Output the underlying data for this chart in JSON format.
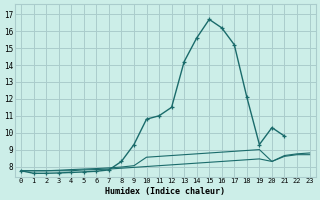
{
  "xlabel": "Humidex (Indice chaleur)",
  "background_color": "#cceee8",
  "grid_color": "#aacccc",
  "line_color": "#1a6b6b",
  "xlim": [
    -0.5,
    23.5
  ],
  "ylim": [
    7.4,
    17.6
  ],
  "xticks": [
    0,
    1,
    2,
    3,
    4,
    5,
    6,
    7,
    8,
    9,
    10,
    11,
    12,
    13,
    14,
    15,
    16,
    17,
    18,
    19,
    20,
    21,
    22,
    23
  ],
  "yticks": [
    8,
    9,
    10,
    11,
    12,
    13,
    14,
    15,
    16,
    17
  ],
  "series": [
    {
      "x": [
        0,
        1,
        2,
        3,
        4,
        5,
        6,
        7,
        8,
        9,
        10,
        11,
        12,
        13,
        14,
        15,
        16,
        17,
        18,
        19,
        20,
        21,
        22,
        23
      ],
      "y": [
        7.75,
        7.75,
        7.75,
        7.75,
        7.75,
        7.8,
        7.82,
        7.85,
        7.9,
        7.95,
        8.0,
        8.05,
        8.1,
        8.15,
        8.2,
        8.25,
        8.3,
        8.35,
        8.4,
        8.45,
        8.3,
        8.6,
        8.7,
        8.7
      ],
      "markers": false
    },
    {
      "x": [
        0,
        1,
        2,
        3,
        4,
        5,
        6,
        7,
        8,
        9,
        10,
        11,
        12,
        13,
        14,
        15,
        16,
        17,
        18,
        19,
        20,
        21,
        22,
        23
      ],
      "y": [
        7.75,
        7.75,
        7.75,
        7.78,
        7.82,
        7.85,
        7.88,
        7.92,
        7.97,
        8.05,
        8.55,
        8.6,
        8.65,
        8.7,
        8.75,
        8.8,
        8.85,
        8.9,
        8.95,
        9.0,
        8.3,
        8.65,
        8.75,
        8.8
      ],
      "markers": false
    },
    {
      "x": [
        0,
        1,
        2,
        3,
        4,
        5,
        6,
        7,
        8,
        9,
        10,
        11,
        12,
        13,
        14,
        15,
        16,
        17,
        18,
        19,
        20,
        21
      ],
      "y": [
        7.75,
        7.6,
        7.6,
        7.62,
        7.65,
        7.68,
        7.72,
        7.8,
        8.3,
        9.3,
        10.8,
        11.0,
        11.5,
        14.2,
        15.6,
        16.7,
        16.2,
        15.2,
        12.1,
        9.3,
        10.3,
        9.8
      ],
      "markers": true
    }
  ]
}
